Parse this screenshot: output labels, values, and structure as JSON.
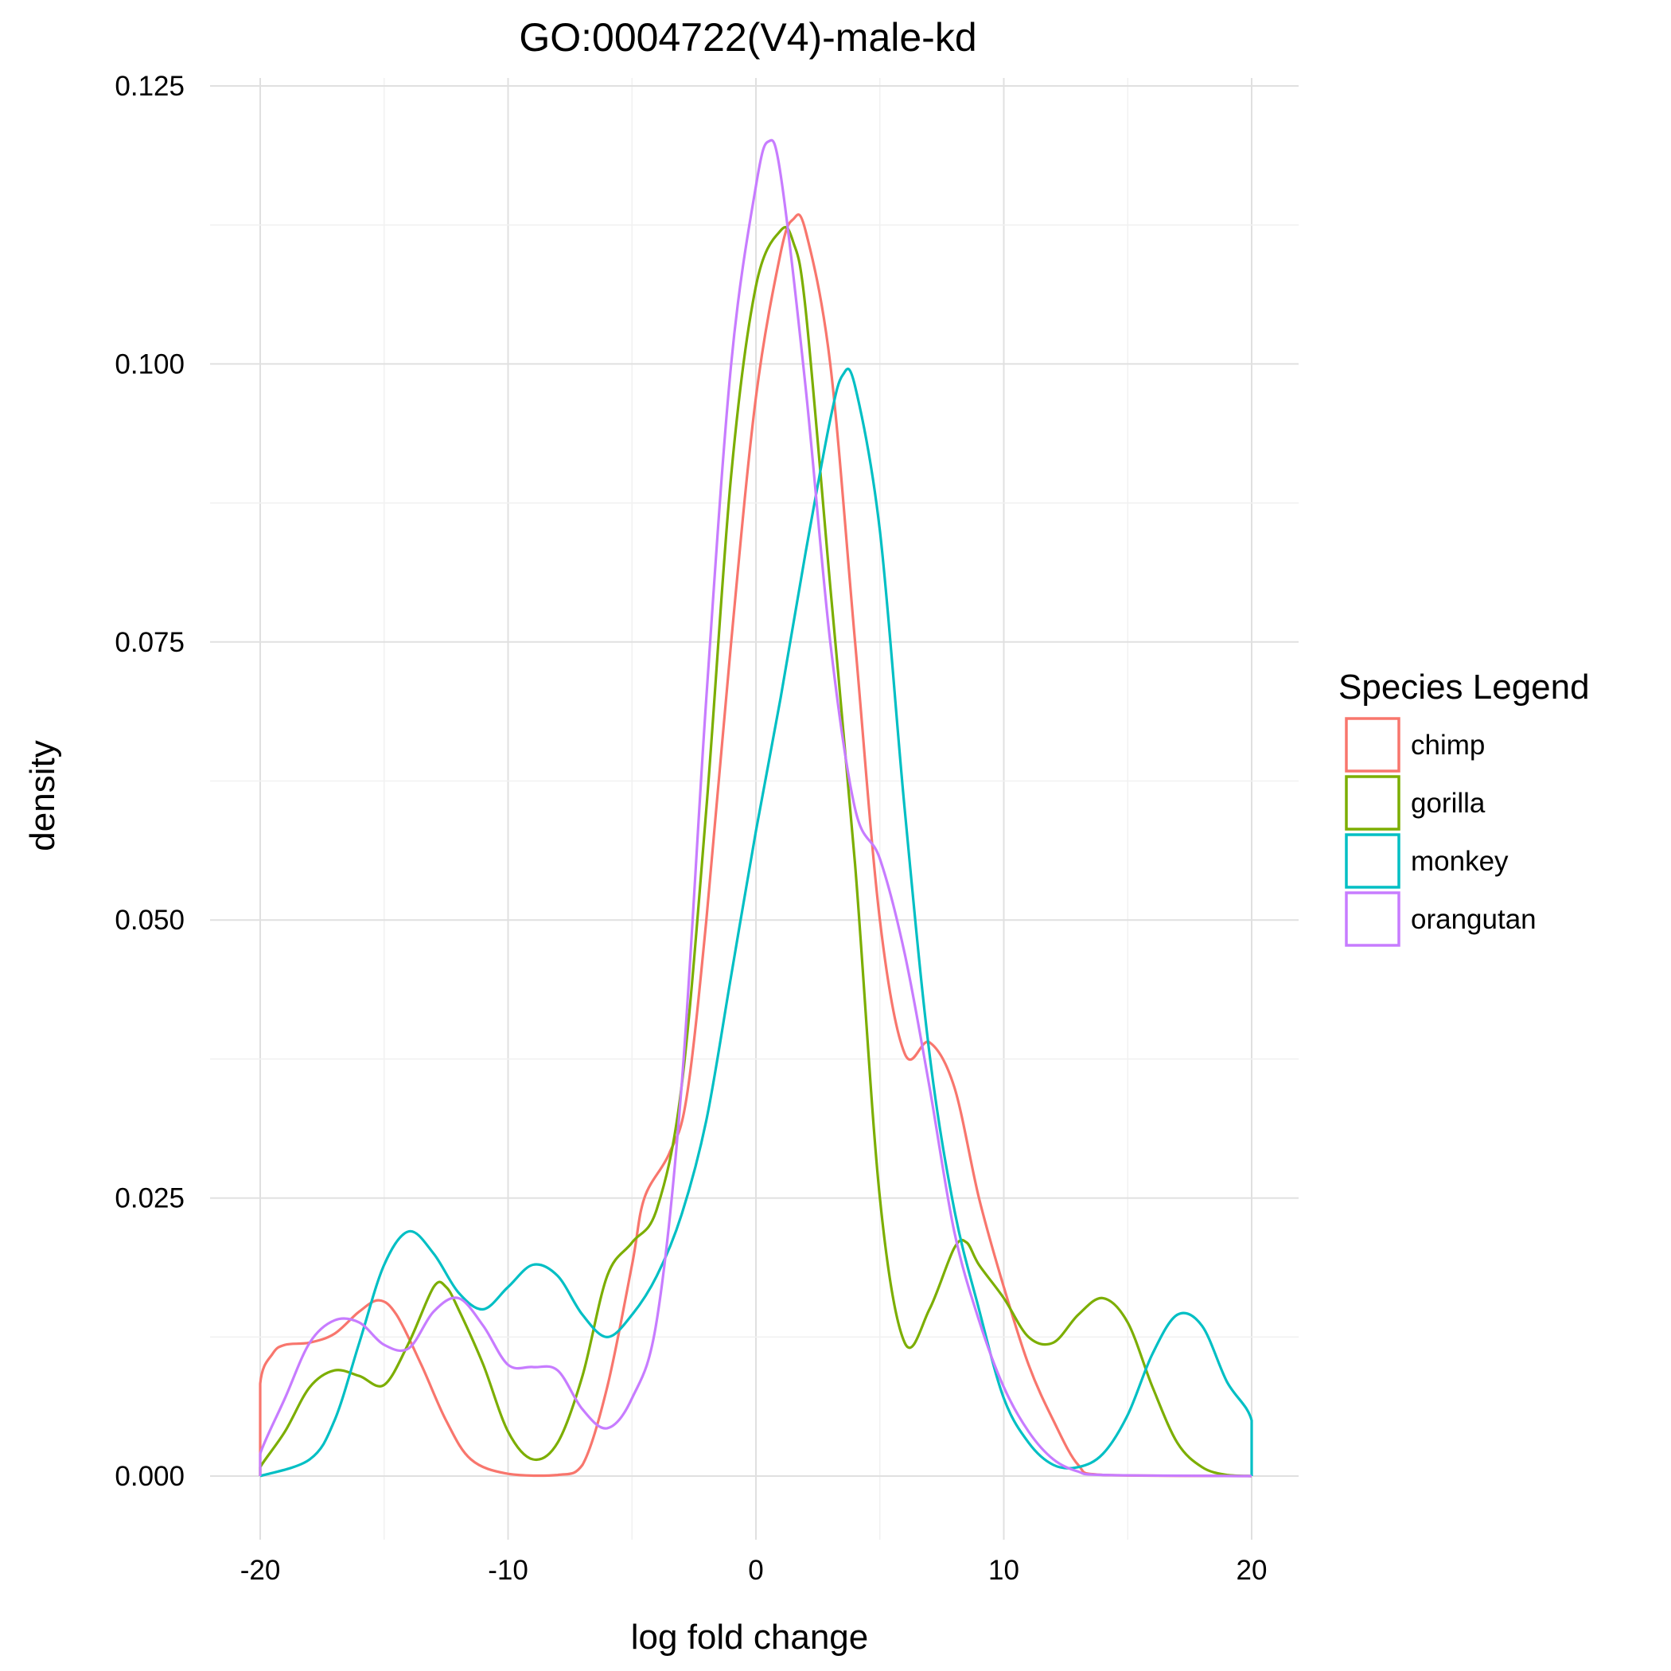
{
  "chart_data": {
    "type": "line",
    "title": "GO:0004722(V4)-male-kd",
    "xlabel": "log fold change",
    "ylabel": "density",
    "xlim": [
      -20,
      20
    ],
    "ylim": [
      0,
      0.125
    ],
    "x_ticks": [
      -20,
      -10,
      0,
      10,
      20
    ],
    "x_tick_labels": [
      "-20",
      "-10",
      "0",
      "10",
      "20"
    ],
    "y_ticks": [
      0,
      0.025,
      0.05,
      0.075,
      0.1,
      0.125
    ],
    "y_tick_labels": [
      "0.000",
      "0.025",
      "0.050",
      "0.075",
      "0.100",
      "0.125"
    ],
    "grid": true,
    "legend": {
      "title": "Species Legend",
      "position": "right"
    },
    "series": [
      {
        "name": "chimp",
        "color": "#F8766D",
        "points": [
          [
            -20,
            0
          ],
          [
            -20,
            0.0083
          ],
          [
            -19.5,
            0.011
          ],
          [
            -19,
            0.0118
          ],
          [
            -18,
            0.012
          ],
          [
            -17,
            0.0128
          ],
          [
            -16,
            0.0148
          ],
          [
            -15.2,
            0.0158
          ],
          [
            -14.5,
            0.0145
          ],
          [
            -13.5,
            0.01
          ],
          [
            -12.5,
            0.005
          ],
          [
            -11.5,
            0.0015
          ],
          [
            -10,
            0.0002
          ],
          [
            -8,
            0.0001
          ],
          [
            -7,
            0.001
          ],
          [
            -6,
            0.008
          ],
          [
            -5,
            0.019
          ],
          [
            -4.5,
            0.025
          ],
          [
            -3.5,
            0.029
          ],
          [
            -2.8,
            0.034
          ],
          [
            -2,
            0.05
          ],
          [
            -1,
            0.075
          ],
          [
            0,
            0.097
          ],
          [
            1,
            0.11
          ],
          [
            1.5,
            0.113
          ],
          [
            2,
            0.112
          ],
          [
            3,
            0.1
          ],
          [
            4,
            0.075
          ],
          [
            5,
            0.05
          ],
          [
            6,
            0.038
          ],
          [
            7,
            0.039
          ],
          [
            8,
            0.035
          ],
          [
            9,
            0.025
          ],
          [
            10,
            0.017
          ],
          [
            11,
            0.01
          ],
          [
            12,
            0.005
          ],
          [
            13,
            0.001
          ],
          [
            14,
            0.0001
          ],
          [
            20,
            0
          ],
          [
            20,
            0
          ]
        ]
      },
      {
        "name": "gorilla",
        "color": "#7CAE00",
        "points": [
          [
            -20,
            0
          ],
          [
            -20,
            0.0008
          ],
          [
            -19,
            0.004
          ],
          [
            -18,
            0.008
          ],
          [
            -17,
            0.0095
          ],
          [
            -16,
            0.009
          ],
          [
            -15,
            0.0082
          ],
          [
            -14,
            0.012
          ],
          [
            -13,
            0.017
          ],
          [
            -12.5,
            0.017
          ],
          [
            -12,
            0.015
          ],
          [
            -11,
            0.01
          ],
          [
            -10,
            0.004
          ],
          [
            -9,
            0.0015
          ],
          [
            -8,
            0.003
          ],
          [
            -7,
            0.009
          ],
          [
            -6,
            0.018
          ],
          [
            -5,
            0.021
          ],
          [
            -4,
            0.024
          ],
          [
            -3,
            0.035
          ],
          [
            -2,
            0.06
          ],
          [
            -1,
            0.09
          ],
          [
            0,
            0.107
          ],
          [
            1,
            0.112
          ],
          [
            1.5,
            0.111
          ],
          [
            2,
            0.105
          ],
          [
            3,
            0.08
          ],
          [
            4,
            0.055
          ],
          [
            5,
            0.025
          ],
          [
            6,
            0.012
          ],
          [
            7,
            0.015
          ],
          [
            8,
            0.0205
          ],
          [
            8.5,
            0.021
          ],
          [
            9,
            0.019
          ],
          [
            10,
            0.016
          ],
          [
            11,
            0.0125
          ],
          [
            12,
            0.012
          ],
          [
            13,
            0.0145
          ],
          [
            14,
            0.016
          ],
          [
            15,
            0.0138
          ],
          [
            16,
            0.008
          ],
          [
            17,
            0.003
          ],
          [
            18,
            0.0008
          ],
          [
            19,
            0.0001
          ],
          [
            20,
            0
          ],
          [
            20,
            0
          ]
        ]
      },
      {
        "name": "monkey",
        "color": "#00BFC4",
        "points": [
          [
            -20,
            0
          ],
          [
            -20,
            0
          ],
          [
            -18,
            0.0015
          ],
          [
            -17,
            0.005
          ],
          [
            -16,
            0.012
          ],
          [
            -15,
            0.019
          ],
          [
            -14,
            0.022
          ],
          [
            -13,
            0.02
          ],
          [
            -12,
            0.0165
          ],
          [
            -11,
            0.015
          ],
          [
            -10,
            0.017
          ],
          [
            -9,
            0.019
          ],
          [
            -8,
            0.018
          ],
          [
            -7,
            0.0145
          ],
          [
            -6,
            0.0125
          ],
          [
            -5,
            0.0145
          ],
          [
            -4,
            0.018
          ],
          [
            -3,
            0.0235
          ],
          [
            -2,
            0.032
          ],
          [
            -1,
            0.045
          ],
          [
            0,
            0.058
          ],
          [
            1,
            0.07
          ],
          [
            2,
            0.083
          ],
          [
            3,
            0.095
          ],
          [
            3.5,
            0.099
          ],
          [
            4,
            0.098
          ],
          [
            5,
            0.085
          ],
          [
            6,
            0.06
          ],
          [
            7,
            0.038
          ],
          [
            8,
            0.024
          ],
          [
            9,
            0.015
          ],
          [
            10,
            0.007
          ],
          [
            11,
            0.003
          ],
          [
            12,
            0.001
          ],
          [
            13,
            0.0008
          ],
          [
            14,
            0.002
          ],
          [
            15,
            0.0055
          ],
          [
            16,
            0.011
          ],
          [
            17,
            0.0145
          ],
          [
            18,
            0.0135
          ],
          [
            19,
            0.0085
          ],
          [
            20,
            0.005
          ],
          [
            20,
            0
          ]
        ]
      },
      {
        "name": "orangutan",
        "color": "#C77CFF",
        "points": [
          [
            -20,
            0
          ],
          [
            -20,
            0.002
          ],
          [
            -19,
            0.007
          ],
          [
            -18,
            0.012
          ],
          [
            -17,
            0.014
          ],
          [
            -16,
            0.0138
          ],
          [
            -15,
            0.0118
          ],
          [
            -14,
            0.0115
          ],
          [
            -13,
            0.0148
          ],
          [
            -12,
            0.016
          ],
          [
            -11,
            0.0135
          ],
          [
            -10,
            0.01
          ],
          [
            -9,
            0.0098
          ],
          [
            -8,
            0.0095
          ],
          [
            -7,
            0.006
          ],
          [
            -6,
            0.0043
          ],
          [
            -5,
            0.007
          ],
          [
            -4,
            0.014
          ],
          [
            -3,
            0.035
          ],
          [
            -2,
            0.07
          ],
          [
            -1,
            0.1
          ],
          [
            0,
            0.116
          ],
          [
            0.5,
            0.12
          ],
          [
            1,
            0.117
          ],
          [
            2,
            0.098
          ],
          [
            3,
            0.075
          ],
          [
            4,
            0.06
          ],
          [
            5,
            0.0555
          ],
          [
            6,
            0.047
          ],
          [
            7,
            0.035
          ],
          [
            8,
            0.022
          ],
          [
            9,
            0.014
          ],
          [
            10,
            0.008
          ],
          [
            11,
            0.004
          ],
          [
            12,
            0.0015
          ],
          [
            13,
            0.0004
          ],
          [
            14,
            0.0001
          ],
          [
            20,
            0
          ],
          [
            20,
            0
          ]
        ]
      }
    ]
  }
}
